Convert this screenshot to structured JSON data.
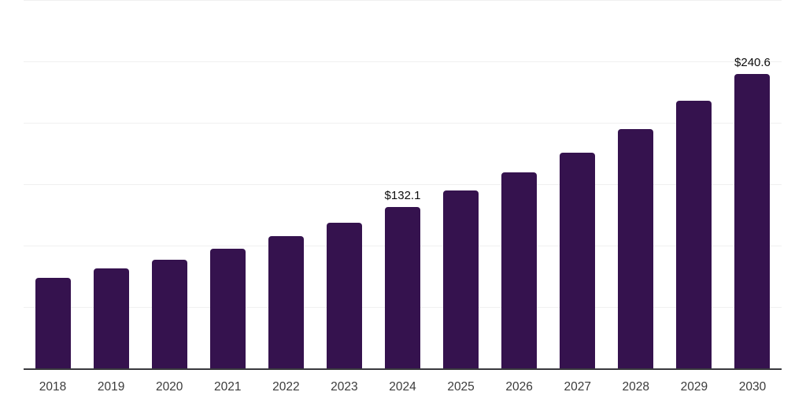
{
  "chart_data": {
    "type": "bar",
    "title": "",
    "xlabel": "",
    "ylabel": "",
    "categories": [
      "2018",
      "2019",
      "2020",
      "2021",
      "2022",
      "2023",
      "2024",
      "2025",
      "2026",
      "2027",
      "2028",
      "2029",
      "2030"
    ],
    "values": [
      74.3,
      81.9,
      89.0,
      97.9,
      108.2,
      119.0,
      132.1,
      145.3,
      160.0,
      176.6,
      195.8,
      218.9,
      240.6
    ],
    "data_labels": {
      "2024": "$132.1",
      "2030": "$240.6"
    },
    "ylim": [
      0,
      300
    ],
    "gridline_interval": 50,
    "grid": "horizontal",
    "y_tick_labels_visible": false,
    "legend_position": "none",
    "colors": {
      "bar": "#35124e",
      "gridline": "#f0f0f0",
      "axis_line": "#3a3a3e",
      "x_tick_label": "#3b3b3b",
      "data_label": "#0d0d0d",
      "background": "#ffffff"
    }
  }
}
